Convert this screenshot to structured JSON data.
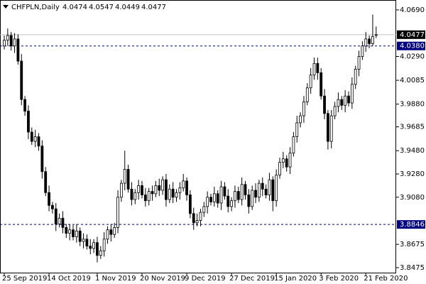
{
  "chart_data": {
    "type": "candlestick",
    "title": "CHFPLN,Daily",
    "categories": [
      "25 Sep 2019",
      null,
      null,
      null,
      null,
      null,
      null,
      null,
      null,
      null,
      null,
      null,
      null,
      "14 Oct 2019",
      null,
      null,
      null,
      null,
      null,
      null,
      null,
      null,
      null,
      null,
      null,
      null,
      null,
      "1 Nov 2019",
      null,
      null,
      null,
      null,
      null,
      null,
      null,
      null,
      null,
      null,
      null,
      null,
      "20 Nov 2019",
      null,
      null,
      null,
      null,
      null,
      null,
      null,
      null,
      null,
      null,
      null,
      null,
      "9 Dec 2019",
      null,
      null,
      null,
      null,
      null,
      null,
      null,
      null,
      null,
      null,
      null,
      null,
      "27 Dec 2019",
      null,
      null,
      null,
      null,
      null,
      null,
      null,
      null,
      null,
      null,
      null,
      null,
      "15 Jan 2020",
      null,
      null,
      null,
      null,
      null,
      null,
      null,
      null,
      null,
      null,
      null,
      null,
      "3 Feb 2020",
      null,
      null,
      null,
      null,
      null,
      null,
      null,
      null,
      null,
      null,
      null,
      null,
      "21 Feb 2020",
      null,
      null,
      null
    ],
    "open": [
      4.038,
      4.043,
      4.047,
      4.038,
      4.044,
      4.025,
      3.992,
      3.982,
      3.964,
      3.956,
      3.96,
      3.952,
      3.93,
      3.912,
      3.901,
      3.898,
      3.885,
      3.89,
      3.882,
      3.877,
      3.88,
      3.874,
      3.879,
      3.87,
      3.872,
      3.866,
      3.864,
      3.869,
      3.858,
      3.862,
      3.872,
      3.88,
      3.876,
      3.882,
      3.908,
      3.92,
      3.932,
      3.915,
      3.906,
      3.912,
      3.918,
      3.91,
      3.905,
      3.913,
      3.911,
      3.918,
      3.914,
      3.923,
      3.906,
      3.915,
      3.908,
      3.912,
      3.916,
      3.922,
      3.91,
      3.894,
      3.886,
      3.888,
      3.895,
      3.9,
      3.908,
      3.904,
      3.911,
      3.903,
      3.917,
      3.909,
      3.9,
      3.905,
      3.913,
      3.906,
      3.919,
      3.91,
      3.9,
      3.914,
      3.908,
      3.92,
      3.915,
      3.91,
      3.923,
      3.905,
      3.927,
      3.938,
      3.941,
      3.934,
      3.946,
      3.96,
      3.972,
      3.978,
      3.99,
      4.002,
      4.013,
      4.023,
      4.015,
      3.995,
      3.98,
      3.956,
      3.978,
      3.986,
      3.992,
      3.987,
      3.995,
      3.989,
      4.005,
      4.018,
      4.029,
      4.038,
      4.044,
      4.04,
      4.0474
    ],
    "high": [
      4.047,
      4.053,
      4.05,
      4.049,
      4.048,
      4.031,
      3.995,
      3.987,
      3.968,
      3.966,
      3.963,
      3.957,
      3.934,
      3.918,
      3.904,
      3.903,
      3.894,
      3.896,
      3.885,
      3.885,
      3.884,
      3.885,
      3.882,
      3.877,
      3.876,
      3.872,
      3.872,
      3.874,
      3.866,
      3.878,
      3.883,
      3.885,
      3.886,
      3.914,
      3.923,
      3.948,
      3.936,
      3.921,
      3.915,
      3.923,
      3.922,
      3.916,
      3.916,
      3.918,
      3.922,
      3.924,
      3.926,
      3.928,
      3.919,
      3.921,
      3.915,
      3.921,
      3.928,
      3.925,
      3.914,
      3.899,
      3.894,
      3.898,
      3.904,
      3.913,
      3.911,
      3.917,
      3.914,
      3.922,
      3.921,
      3.915,
      3.908,
      3.918,
      3.917,
      3.925,
      3.922,
      3.915,
      3.918,
      3.92,
      3.923,
      3.925,
      3.919,
      3.929,
      3.926,
      3.932,
      3.942,
      3.947,
      3.944,
      3.951,
      3.964,
      3.978,
      3.981,
      3.995,
      4.006,
      4.019,
      4.028,
      4.028,
      4.019,
      4.001,
      3.983,
      3.983,
      3.99,
      3.998,
      3.995,
      4.0,
      3.999,
      4.011,
      4.021,
      4.034,
      4.042,
      4.05,
      4.047,
      4.065,
      4.0547
    ],
    "low": [
      4.035,
      4.038,
      4.034,
      4.032,
      4.022,
      3.987,
      3.978,
      3.958,
      3.953,
      3.951,
      3.948,
      3.924,
      3.909,
      3.896,
      3.894,
      3.879,
      3.882,
      3.877,
      3.873,
      3.871,
      3.871,
      3.869,
      3.866,
      3.864,
      3.863,
      3.859,
      3.86,
      3.852,
      3.855,
      3.857,
      3.868,
      3.87,
      3.873,
      3.877,
      3.904,
      3.914,
      3.912,
      3.901,
      3.902,
      3.906,
      3.907,
      3.9,
      3.901,
      3.905,
      3.908,
      3.909,
      3.91,
      3.9,
      3.903,
      3.903,
      3.904,
      3.906,
      3.913,
      3.905,
      3.89,
      3.88,
      3.883,
      3.883,
      3.891,
      3.894,
      3.901,
      3.9,
      3.899,
      3.897,
      3.906,
      3.895,
      3.896,
      3.899,
      3.903,
      3.901,
      3.906,
      3.894,
      3.897,
      3.903,
      3.904,
      3.909,
      3.907,
      3.905,
      3.896,
      3.9,
      3.924,
      3.933,
      3.93,
      3.928,
      3.943,
      3.955,
      3.968,
      3.972,
      3.987,
      3.997,
      4.009,
      4.009,
      3.992,
      3.975,
      3.949,
      3.95,
      3.975,
      3.981,
      3.983,
      3.981,
      3.986,
      3.984,
      4.001,
      4.012,
      4.026,
      4.033,
      4.036,
      4.038,
      4.0449
    ],
    "close": [
      4.043,
      4.047,
      4.038,
      4.044,
      4.025,
      3.992,
      3.982,
      3.964,
      3.956,
      3.96,
      3.952,
      3.93,
      3.912,
      3.901,
      3.898,
      3.885,
      3.89,
      3.882,
      3.877,
      3.88,
      3.874,
      3.879,
      3.87,
      3.872,
      3.866,
      3.864,
      3.869,
      3.858,
      3.862,
      3.872,
      3.88,
      3.876,
      3.882,
      3.908,
      3.92,
      3.932,
      3.915,
      3.906,
      3.912,
      3.918,
      3.91,
      3.905,
      3.913,
      3.911,
      3.918,
      3.914,
      3.923,
      3.906,
      3.915,
      3.908,
      3.912,
      3.916,
      3.922,
      3.91,
      3.894,
      3.886,
      3.888,
      3.895,
      3.9,
      3.908,
      3.904,
      3.911,
      3.903,
      3.917,
      3.909,
      3.9,
      3.905,
      3.913,
      3.906,
      3.919,
      3.91,
      3.9,
      3.914,
      3.908,
      3.92,
      3.915,
      3.91,
      3.923,
      3.905,
      3.927,
      3.938,
      3.941,
      3.934,
      3.946,
      3.96,
      3.972,
      3.978,
      3.99,
      4.002,
      4.013,
      4.023,
      4.015,
      3.995,
      3.98,
      3.956,
      3.978,
      3.986,
      3.992,
      3.987,
      3.995,
      3.989,
      4.005,
      4.018,
      4.029,
      4.038,
      4.044,
      4.04,
      4.046,
      4.0477
    ],
    "ylim": [
      3.8432,
      4.0775
    ],
    "yticks": [
      {
        "value": 4.069,
        "label": "4.0690"
      },
      {
        "value": 4.029,
        "label": "4.0290"
      },
      4.0085,
      {
        "value": 3.988,
        "label": "3.9880"
      },
      3.9685,
      {
        "value": 3.948,
        "label": "3.9480"
      },
      {
        "value": 3.928,
        "label": "3.9280"
      },
      {
        "value": 3.908,
        "label": "3.9080"
      },
      3.8675,
      3.8475
    ],
    "levels": [
      {
        "value": 4.038,
        "label": "4.0380"
      },
      {
        "value": 3.8846,
        "label": "3.8846"
      }
    ],
    "level_color": "#000080",
    "bid_color": "#c0c0c0",
    "up_color": "#ffffff",
    "down_color": "#000000",
    "line_color": "#000000"
  }
}
